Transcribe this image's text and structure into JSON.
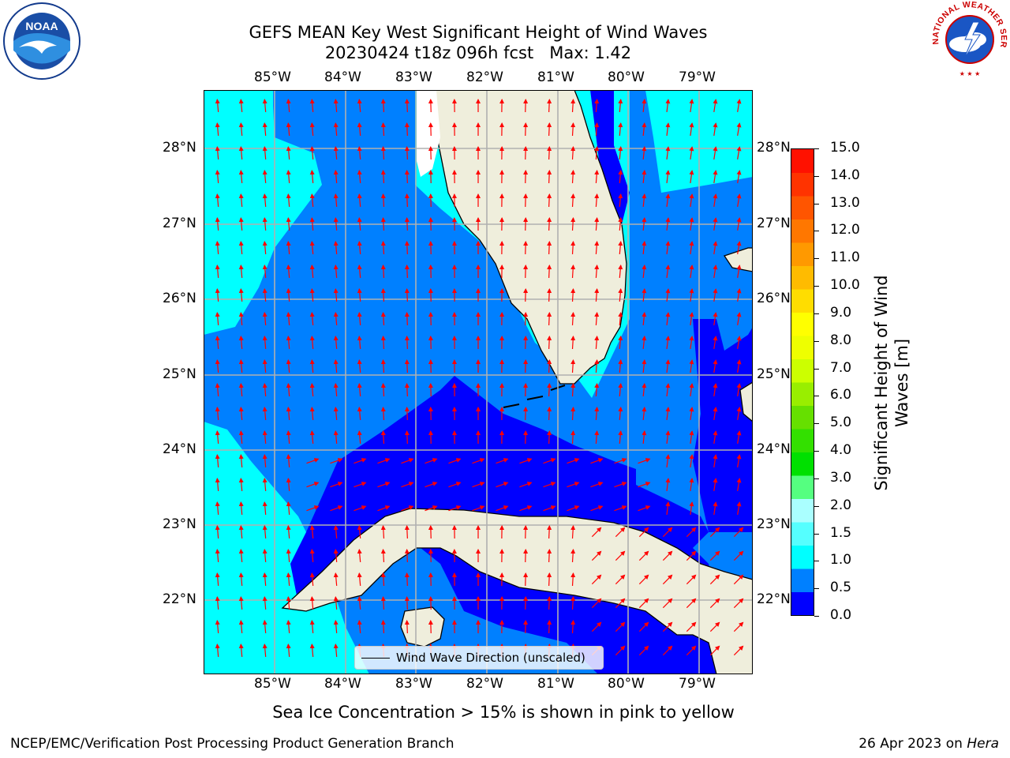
{
  "title": {
    "line1": "GEFS MEAN Key West Significant Height of Wind Waves",
    "line2": "20230424 t18z 096h fcst   Max: 1.42"
  },
  "map": {
    "lon_labels": [
      "85°W",
      "84°W",
      "83°W",
      "82°W",
      "81°W",
      "80°W",
      "79°W"
    ],
    "lat_labels": [
      "28°N",
      "27°N",
      "26°N",
      "25°N",
      "24°N",
      "23°N",
      "22°N"
    ],
    "colors": {
      "ocean_dark": "#0000ff",
      "ocean_mid": "#0080ff",
      "ocean_light": "#00ffff",
      "land": "#efeedc",
      "grid": "#b0b0b0",
      "arrow": "#ff0000"
    }
  },
  "legend": {
    "label": "Wind Wave Direction (unscaled)"
  },
  "colorbar": {
    "title_line1": "Significant Height of Wind",
    "title_line2": "Waves [m]",
    "ticks": [
      "15.0",
      "14.0",
      "13.0",
      "12.0",
      "11.0",
      "10.0",
      "9.0",
      "8.0",
      "7.0",
      "6.0",
      "5.0",
      "4.0",
      "3.0",
      "2.0",
      "1.5",
      "1.0",
      "0.5",
      "0.0"
    ],
    "colors": [
      "#0000ff",
      "#0080ff",
      "#00ffff",
      "#55ffff",
      "#aaffff",
      "#55ff80",
      "#00e000",
      "#33e000",
      "#66e000",
      "#99ee00",
      "#ccff00",
      "#eeff00",
      "#ffff00",
      "#ffdd00",
      "#ffbb00",
      "#ff9900",
      "#ff7700",
      "#ff5500",
      "#ff3300",
      "#ff1100"
    ]
  },
  "note": "Sea Ice Concentration > 15% is shown in pink to yellow",
  "footer": {
    "left": "NCEP/EMC/Verification Post Processing Product Generation Branch",
    "date": "26 Apr 2023 on ",
    "machine": "Hera"
  },
  "logos": {
    "noaa_text": "NOAA",
    "nws_text": "NATIONAL WEATHER SERVICE"
  }
}
